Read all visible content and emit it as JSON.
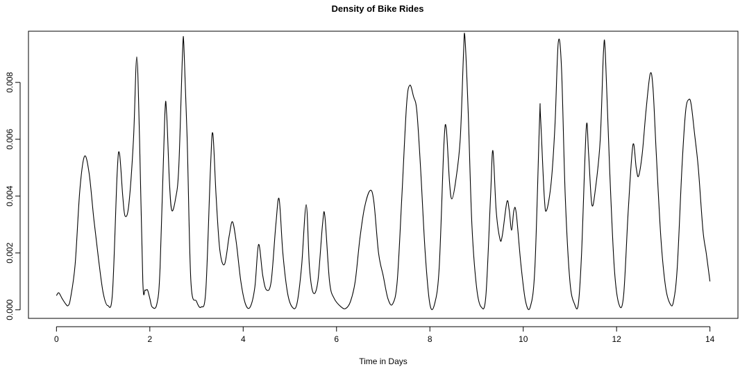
{
  "chart_data": {
    "type": "line",
    "title": "Density of Bike Rides",
    "xlabel": "Time in Days",
    "ylabel": "",
    "xlim": [
      -0.6,
      14.6
    ],
    "ylim": [
      -0.0003,
      0.0098
    ],
    "x_ticks": [
      0,
      2,
      4,
      6,
      8,
      10,
      12,
      14
    ],
    "x_tick_labels": [
      "0",
      "2",
      "4",
      "6",
      "8",
      "10",
      "12",
      "14"
    ],
    "y_ticks": [
      0,
      0.002,
      0.004,
      0.006,
      0.008
    ],
    "y_tick_labels": [
      "0.000",
      "0.002",
      "0.004",
      "0.006",
      "0.008"
    ],
    "grid": false,
    "legend": "none",
    "series": [
      {
        "color": "#000000",
        "points": [
          [
            0.0,
            0.0005
          ],
          [
            0.05,
            0.0006
          ],
          [
            0.12,
            0.0004
          ],
          [
            0.2,
            0.0002
          ],
          [
            0.25,
            0.00015
          ],
          [
            0.3,
            0.0004
          ],
          [
            0.4,
            0.0016
          ],
          [
            0.5,
            0.0042
          ],
          [
            0.6,
            0.0054
          ],
          [
            0.7,
            0.0048
          ],
          [
            0.8,
            0.0032
          ],
          [
            0.9,
            0.0018
          ],
          [
            1.0,
            0.0006
          ],
          [
            1.1,
            0.00015
          ],
          [
            1.2,
            0.0006
          ],
          [
            1.3,
            0.0048
          ],
          [
            1.35,
            0.0055
          ],
          [
            1.42,
            0.004
          ],
          [
            1.47,
            0.0033
          ],
          [
            1.55,
            0.0037
          ],
          [
            1.65,
            0.006
          ],
          [
            1.72,
            0.0089
          ],
          [
            1.78,
            0.006
          ],
          [
            1.85,
            0.001
          ],
          [
            1.9,
            0.0007
          ],
          [
            1.95,
            0.0007
          ],
          [
            2.0,
            0.0004
          ],
          [
            2.05,
            0.0001
          ],
          [
            2.15,
            0.0002
          ],
          [
            2.22,
            0.0015
          ],
          [
            2.32,
            0.0068
          ],
          [
            2.36,
            0.0069
          ],
          [
            2.42,
            0.0045
          ],
          [
            2.47,
            0.0035
          ],
          [
            2.55,
            0.0039
          ],
          [
            2.62,
            0.005
          ],
          [
            2.7,
            0.009
          ],
          [
            2.73,
            0.0093
          ],
          [
            2.8,
            0.006
          ],
          [
            2.88,
            0.001
          ],
          [
            3.0,
            0.0003
          ],
          [
            3.1,
            0.0001
          ],
          [
            3.2,
            0.0007
          ],
          [
            3.3,
            0.005
          ],
          [
            3.35,
            0.0062
          ],
          [
            3.42,
            0.004
          ],
          [
            3.5,
            0.0021
          ],
          [
            3.6,
            0.0016
          ],
          [
            3.7,
            0.0026
          ],
          [
            3.77,
            0.0031
          ],
          [
            3.85,
            0.0024
          ],
          [
            3.95,
            0.001
          ],
          [
            4.05,
            0.0002
          ],
          [
            4.15,
            0.0001
          ],
          [
            4.25,
            0.0008
          ],
          [
            4.33,
            0.0023
          ],
          [
            4.42,
            0.0012
          ],
          [
            4.5,
            0.0007
          ],
          [
            4.6,
            0.001
          ],
          [
            4.7,
            0.003
          ],
          [
            4.77,
            0.0039
          ],
          [
            4.85,
            0.002
          ],
          [
            4.95,
            0.0006
          ],
          [
            5.05,
            0.0001
          ],
          [
            5.15,
            0.0002
          ],
          [
            5.25,
            0.0015
          ],
          [
            5.35,
            0.0037
          ],
          [
            5.42,
            0.0015
          ],
          [
            5.5,
            0.0006
          ],
          [
            5.6,
            0.001
          ],
          [
            5.7,
            0.003
          ],
          [
            5.75,
            0.0033
          ],
          [
            5.85,
            0.001
          ],
          [
            5.95,
            0.0004
          ],
          [
            6.1,
            0.0001
          ],
          [
            6.2,
            5e-05
          ],
          [
            6.3,
            0.0003
          ],
          [
            6.4,
            0.001
          ],
          [
            6.5,
            0.0025
          ],
          [
            6.6,
            0.0036
          ],
          [
            6.72,
            0.0042
          ],
          [
            6.8,
            0.0038
          ],
          [
            6.9,
            0.002
          ],
          [
            7.0,
            0.0012
          ],
          [
            7.1,
            0.0004
          ],
          [
            7.2,
            0.0002
          ],
          [
            7.3,
            0.001
          ],
          [
            7.4,
            0.004
          ],
          [
            7.5,
            0.0072
          ],
          [
            7.57,
            0.0079
          ],
          [
            7.65,
            0.0075
          ],
          [
            7.72,
            0.007
          ],
          [
            7.8,
            0.005
          ],
          [
            7.9,
            0.002
          ],
          [
            8.0,
            0.0002
          ],
          [
            8.1,
            0.0002
          ],
          [
            8.2,
            0.0015
          ],
          [
            8.3,
            0.0058
          ],
          [
            8.35,
            0.0064
          ],
          [
            8.42,
            0.0045
          ],
          [
            8.47,
            0.0039
          ],
          [
            8.55,
            0.0045
          ],
          [
            8.65,
            0.006
          ],
          [
            8.72,
            0.009
          ],
          [
            8.75,
            0.0096
          ],
          [
            8.82,
            0.007
          ],
          [
            8.9,
            0.003
          ],
          [
            9.0,
            0.0008
          ],
          [
            9.1,
            0.0001
          ],
          [
            9.2,
            0.0005
          ],
          [
            9.3,
            0.004
          ],
          [
            9.35,
            0.0056
          ],
          [
            9.42,
            0.0035
          ],
          [
            9.5,
            0.0025
          ],
          [
            9.55,
            0.0026
          ],
          [
            9.65,
            0.0038
          ],
          [
            9.7,
            0.0035
          ],
          [
            9.75,
            0.0028
          ],
          [
            9.8,
            0.0035
          ],
          [
            9.85,
            0.0034
          ],
          [
            9.95,
            0.0016
          ],
          [
            10.05,
            0.0003
          ],
          [
            10.15,
            0.0001
          ],
          [
            10.25,
            0.0015
          ],
          [
            10.35,
            0.0067
          ],
          [
            10.37,
            0.0068
          ],
          [
            10.45,
            0.004
          ],
          [
            10.5,
            0.0035
          ],
          [
            10.6,
            0.0045
          ],
          [
            10.68,
            0.0065
          ],
          [
            10.75,
            0.0094
          ],
          [
            10.82,
            0.0085
          ],
          [
            10.9,
            0.004
          ],
          [
            11.0,
            0.001
          ],
          [
            11.1,
            0.0002
          ],
          [
            11.18,
            0.0002
          ],
          [
            11.25,
            0.002
          ],
          [
            11.35,
            0.0064
          ],
          [
            11.4,
            0.0055
          ],
          [
            11.47,
            0.0037
          ],
          [
            11.55,
            0.0043
          ],
          [
            11.65,
            0.006
          ],
          [
            11.72,
            0.0091
          ],
          [
            11.76,
            0.009
          ],
          [
            11.85,
            0.005
          ],
          [
            11.95,
            0.0015
          ],
          [
            12.05,
            0.0002
          ],
          [
            12.15,
            0.0005
          ],
          [
            12.25,
            0.0035
          ],
          [
            12.35,
            0.0058
          ],
          [
            12.42,
            0.005
          ],
          [
            12.47,
            0.0047
          ],
          [
            12.55,
            0.0055
          ],
          [
            12.63,
            0.007
          ],
          [
            12.72,
            0.0083
          ],
          [
            12.78,
            0.0078
          ],
          [
            12.85,
            0.0055
          ],
          [
            12.95,
            0.0025
          ],
          [
            13.05,
            0.0008
          ],
          [
            13.15,
            0.0002
          ],
          [
            13.22,
            0.0003
          ],
          [
            13.3,
            0.0015
          ],
          [
            13.4,
            0.005
          ],
          [
            13.48,
            0.007
          ],
          [
            13.55,
            0.0074
          ],
          [
            13.6,
            0.0072
          ],
          [
            13.67,
            0.0062
          ],
          [
            13.75,
            0.005
          ],
          [
            13.85,
            0.0028
          ],
          [
            13.92,
            0.002
          ],
          [
            14.0,
            0.001
          ]
        ]
      }
    ]
  }
}
